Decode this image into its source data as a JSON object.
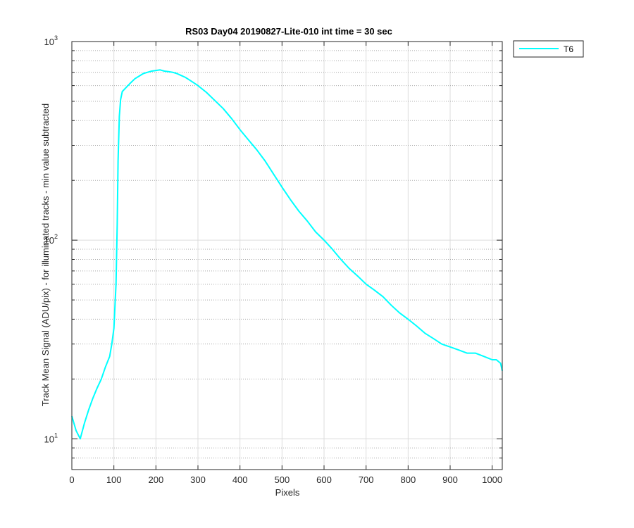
{
  "chart_data": {
    "type": "line",
    "title": "RS03 Day04 20190827-Lite-010 int time = 30 sec",
    "xlabel": "Pixels",
    "ylabel": "Track Mean Signal (ADU/pix) - for illuminated tracks - min value subtracted",
    "xlim": [
      0,
      1024
    ],
    "ylim": [
      7,
      1000
    ],
    "yscale": "log",
    "grid": true,
    "legend_position": "outside-top-right",
    "x_ticks": [
      "0",
      "100",
      "200",
      "300",
      "400",
      "500",
      "600",
      "700",
      "800",
      "900",
      "1000"
    ],
    "y_ticks": [
      {
        "base": "10",
        "exp": "1"
      },
      {
        "base": "10",
        "exp": "2"
      },
      {
        "base": "10",
        "exp": "3"
      }
    ],
    "series": [
      {
        "name": "T6",
        "color": "#00ffff",
        "x": [
          0,
          10,
          20,
          30,
          40,
          50,
          60,
          70,
          80,
          90,
          95,
          100,
          105,
          108,
          110,
          113,
          116,
          120,
          130,
          140,
          150,
          160,
          170,
          180,
          190,
          200,
          210,
          220,
          230,
          240,
          250,
          260,
          270,
          280,
          290,
          300,
          320,
          340,
          360,
          380,
          400,
          420,
          440,
          460,
          480,
          500,
          520,
          540,
          560,
          580,
          600,
          620,
          640,
          660,
          680,
          700,
          720,
          740,
          760,
          780,
          800,
          820,
          840,
          860,
          880,
          900,
          920,
          940,
          960,
          980,
          1000,
          1010,
          1020,
          1024
        ],
        "y": [
          13,
          11,
          10,
          12,
          14,
          16,
          18,
          20,
          23,
          26,
          30,
          36,
          60,
          120,
          250,
          420,
          510,
          560,
          590,
          620,
          650,
          670,
          690,
          700,
          710,
          715,
          720,
          710,
          705,
          700,
          690,
          675,
          660,
          640,
          620,
          600,
          555,
          505,
          460,
          410,
          360,
          320,
          285,
          250,
          215,
          185,
          160,
          140,
          125,
          110,
          100,
          90,
          80,
          72,
          66,
          60,
          56,
          52,
          47,
          43,
          40,
          37,
          34,
          32,
          30,
          29,
          28,
          27,
          27,
          26,
          25,
          25,
          24,
          22
        ]
      }
    ]
  }
}
